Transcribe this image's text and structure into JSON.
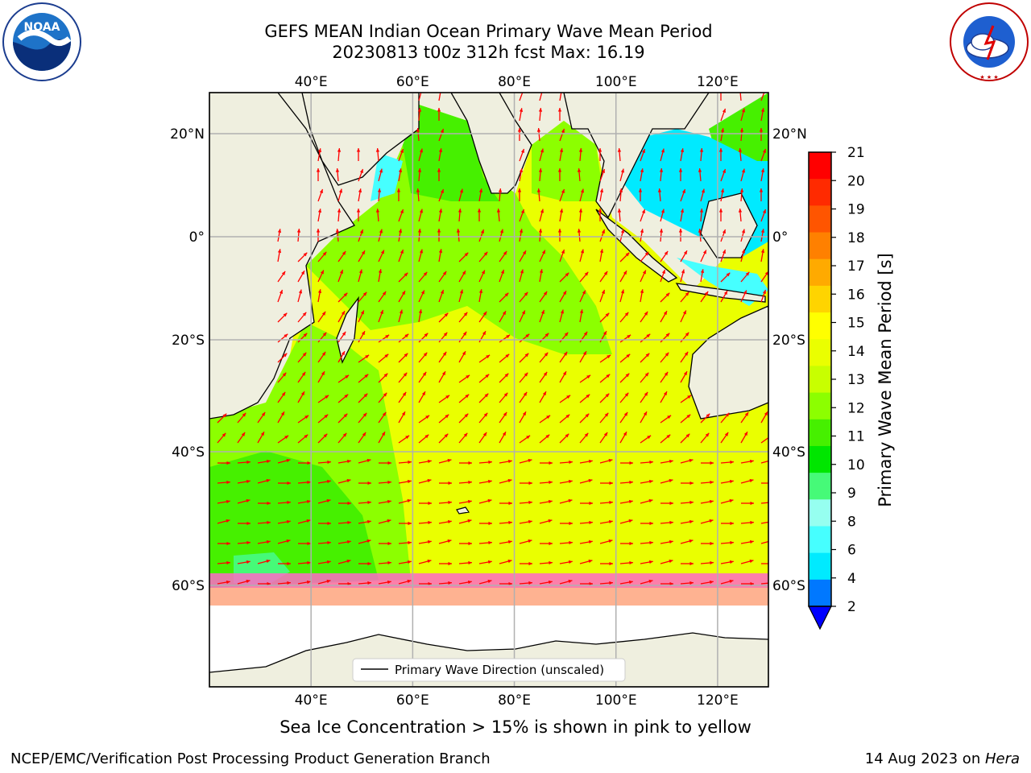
{
  "header": {
    "title_line1": "GEFS MEAN Indian Ocean Primary Wave Mean Period",
    "title_line2": "20230813 t00z 312h fcst   Max: 16.19"
  },
  "logos": {
    "left": {
      "name": "noaa-logo",
      "text": "NOAA",
      "ring_text": "NATIONAL OCEANIC AND ATMOSPHERIC ADMINISTRATION · U.S. DEPARTMENT OF COMMERCE"
    },
    "right": {
      "name": "nws-logo",
      "ring_text": "NATIONAL WEATHER SERVICE"
    }
  },
  "map": {
    "region": "Indian Ocean",
    "lon_ticks": [
      "40°E",
      "60°E",
      "80°E",
      "100°E",
      "120°E"
    ],
    "lon_values": [
      40,
      60,
      80,
      100,
      120
    ],
    "lat_ticks": [
      "20°N",
      "0°",
      "20°S",
      "40°S",
      "60°S"
    ],
    "lat_values": [
      20,
      0,
      -20,
      -40,
      -60
    ],
    "lon_range": [
      20,
      130
    ],
    "lat_range": [
      28,
      -87
    ],
    "grid": true,
    "colors": {
      "land": "#efefdf",
      "ice_free_open": "#ffffff",
      "gridline": "#b0b0b0",
      "vector": "#ff0000",
      "coast": "#000000"
    }
  },
  "legend": {
    "label": "Primary Wave Direction (unscaled)",
    "placement": "bottom-center"
  },
  "colorbar": {
    "label": "Primary Wave Mean Period [s]",
    "ticks": [
      "21",
      "20",
      "19",
      "18",
      "17",
      "16",
      "15",
      "14",
      "13",
      "12",
      "11",
      "10",
      "9",
      "8",
      "6",
      "4",
      "2"
    ],
    "colors": [
      "#ff0000",
      "#ff2a00",
      "#ff5500",
      "#ff8000",
      "#ffaa00",
      "#ffd400",
      "#ffff00",
      "#eaff00",
      "#c8ff00",
      "#8cff00",
      "#46f000",
      "#00e600",
      "#46fa78",
      "#96fff0",
      "#46ffff",
      "#00eaff",
      "#0078ff"
    ],
    "extend_color": "#0000ff"
  },
  "chart_data": {
    "type": "heatmap",
    "title": "GEFS MEAN Indian Ocean Primary Wave Mean Period",
    "subtitle": "20230813 t00z 312h fcst   Max: 16.19",
    "variable": "Primary Wave Mean Period",
    "units": "s",
    "max": 16.19,
    "colorbar_range": [
      2,
      21
    ],
    "overlay": "Primary Wave Direction (unscaled)",
    "note": "Sea Ice Concentration > 15% is shown in pink to yellow"
  },
  "footer": {
    "caption": "Sea Ice Concentration > 15% is shown in pink to yellow",
    "credit_left": "NCEP/EMC/Verification Post Processing Product Generation Branch",
    "credit_date": "14 Aug 2023 on ",
    "credit_host": "Hera"
  }
}
